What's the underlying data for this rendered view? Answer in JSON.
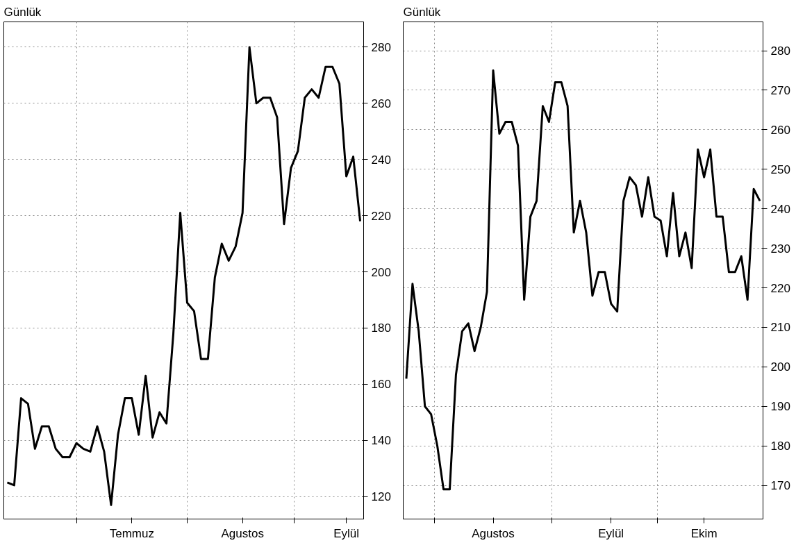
{
  "chart_data": [
    {
      "type": "line",
      "title": "Günlük",
      "ylim": [
        112,
        289
      ],
      "yticks": [
        120,
        140,
        160,
        180,
        200,
        220,
        240,
        260,
        280
      ],
      "categories": [
        null,
        null,
        null,
        null,
        null,
        null,
        null,
        null,
        null,
        null,
        null,
        null,
        null,
        null,
        null,
        null,
        null,
        null,
        "Temmuz",
        null,
        null,
        null,
        null,
        null,
        null,
        null,
        null,
        null,
        null,
        null,
        null,
        null,
        null,
        null,
        "Agustos",
        null,
        null,
        null,
        null,
        null,
        null,
        null,
        null,
        null,
        null,
        null,
        null,
        null,
        null,
        "Eylül",
        null,
        null
      ],
      "grid": true,
      "line_style": "solid",
      "marker": "none",
      "series": [
        {
          "color": "#000000",
          "values": [
            125,
            124,
            155,
            153,
            137,
            145,
            145,
            137,
            134,
            134,
            139,
            137,
            136,
            145,
            136,
            117,
            142,
            155,
            155,
            142,
            163,
            141,
            150,
            146,
            178,
            221,
            189,
            186,
            169,
            169,
            198,
            210,
            204,
            209,
            221,
            280,
            260,
            262,
            262,
            255,
            217,
            237,
            243,
            262,
            265,
            262,
            273,
            273,
            267,
            234,
            241,
            218
          ]
        }
      ]
    },
    {
      "type": "line",
      "title": "Günlük",
      "ylim": [
        161.5,
        287.3
      ],
      "yticks": [
        170,
        180,
        190,
        200,
        210,
        220,
        230,
        240,
        250,
        260,
        270,
        280
      ],
      "categories": [
        null,
        null,
        null,
        null,
        null,
        null,
        null,
        null,
        null,
        null,
        null,
        null,
        null,
        null,
        "Agustos",
        null,
        null,
        null,
        null,
        null,
        null,
        null,
        null,
        null,
        null,
        null,
        null,
        null,
        null,
        null,
        null,
        null,
        null,
        "Eylül",
        null,
        null,
        null,
        null,
        null,
        null,
        null,
        null,
        null,
        null,
        null,
        null,
        null,
        null,
        "Ekim",
        null,
        null,
        null,
        null,
        null,
        null,
        null,
        null,
        null
      ],
      "grid": true,
      "line_style": "solid",
      "marker": "none",
      "series": [
        {
          "color": "#000000",
          "values": [
            197,
            221,
            209,
            190,
            188,
            180,
            169,
            169,
            198,
            209,
            211,
            204,
            210,
            219,
            275,
            259,
            262,
            262,
            256,
            217,
            238,
            242,
            266,
            262,
            272,
            272,
            266,
            234,
            242,
            234,
            218,
            224,
            224,
            216,
            214,
            242,
            248,
            246,
            238,
            248,
            238,
            237,
            228,
            244,
            228,
            234,
            225,
            255,
            248,
            255,
            238,
            238,
            224,
            224,
            228,
            217,
            245,
            242
          ]
        }
      ]
    }
  ]
}
